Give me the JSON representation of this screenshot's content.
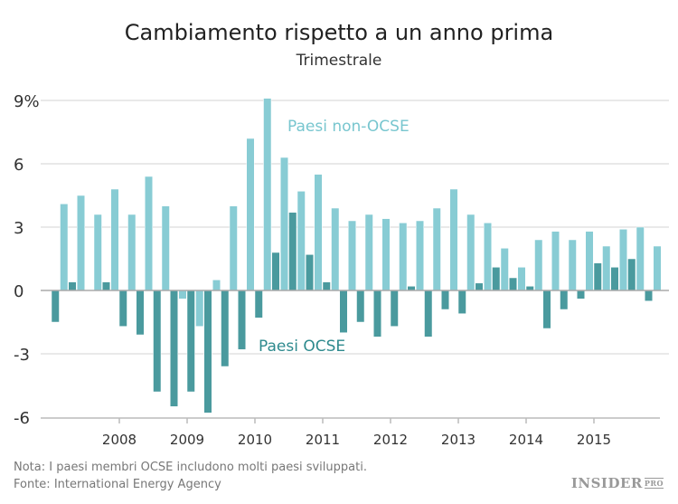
{
  "title": "Cambiamento rispetto a un anno prima",
  "subtitle": "Trimestrale",
  "footer": {
    "note": "Nota: I paesi membri OCSE includono molti paesi sviluppati.",
    "source": "Fonte: International Energy Agency"
  },
  "logo": "INSIDER PRO",
  "chart_data": {
    "type": "bar",
    "title": "Cambiamento rispetto a un anno prima",
    "subtitle": "Trimestrale",
    "x_start": "2007 Q1",
    "frequency": "quarterly",
    "ylim": [
      -6,
      9
    ],
    "yticks": [
      -6,
      -3,
      0,
      3,
      6,
      9
    ],
    "ytick_labels": [
      "-6",
      "-3",
      "0",
      "3",
      "6",
      "9%"
    ],
    "xtick_labels": [
      "2008",
      "2009",
      "2010",
      "2011",
      "2012",
      "2013",
      "2014",
      "2015"
    ],
    "grid": true,
    "series": [
      {
        "name": "Paesi OCSE",
        "color": "#4a9a9e",
        "values": [
          -1.5,
          0.4,
          0,
          0.4,
          -1.7,
          -2.1,
          -4.8,
          -5.5,
          -4.8,
          -5.8,
          -3.6,
          -2.8,
          -1.3,
          1.8,
          3.7,
          1.7,
          0.4,
          -2.0,
          -1.5,
          -2.2,
          -1.7,
          0.2,
          -2.2,
          -0.9,
          -1.1,
          0.35,
          1.1,
          0.6,
          0.2,
          -1.8,
          -0.9,
          -0.4,
          1.3,
          1.1,
          1.5,
          -0.5
        ]
      },
      {
        "name": "Paesi non-OCSE",
        "color": "#88ccd4",
        "values": [
          4.1,
          4.5,
          3.6,
          4.8,
          3.6,
          5.4,
          4.0,
          -0.4,
          -1.7,
          0.5,
          4.0,
          7.2,
          9.1,
          6.3,
          4.7,
          5.5,
          3.9,
          3.3,
          3.6,
          3.4,
          3.2,
          3.3,
          3.9,
          4.8,
          3.6,
          3.2,
          2.0,
          1.1,
          2.4,
          2.8,
          2.4,
          2.8,
          2.1,
          2.9,
          3.0,
          2.1
        ]
      }
    ]
  }
}
